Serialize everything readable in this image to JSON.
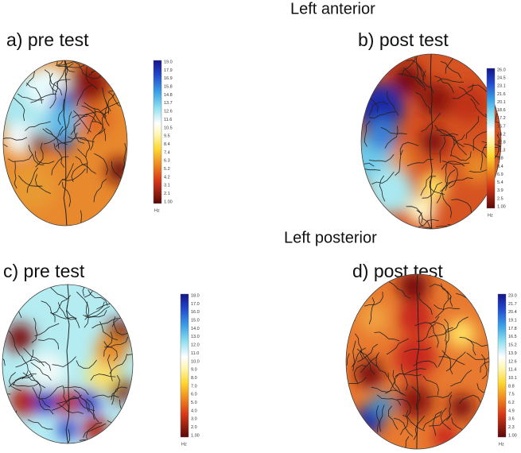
{
  "sections": [
    {
      "title": "Left anterior",
      "panels": [
        {
          "label": "a) pre test",
          "colorbar": {
            "labels": [
              "19.0",
              "17.9",
              "16.9",
              "15.8",
              "14.8",
              "13.7",
              "12.6",
              "11.6",
              "10.5",
              "9.5",
              "8.4",
              "7.4",
              "6.3",
              "5.2",
              "4.2",
              "3.1",
              "2.1",
              "1.00"
            ],
            "unit": "Hz"
          }
        },
        {
          "label": "b) post test",
          "colorbar": {
            "labels": [
              "26.0",
              "24.5",
              "23.1",
              "21.6",
              "20.1",
              "18.6",
              "17.2",
              "15.7",
              "14.2",
              "12.8",
              "11.3",
              "9.8",
              "8.4",
              "6.9",
              "5.4",
              "3.9",
              "2.5",
              "1.00"
            ],
            "unit": "Hz"
          }
        }
      ]
    },
    {
      "title": "Left posterior",
      "panels": [
        {
          "label": "c) pre test",
          "colorbar": {
            "labels": [
              "18.0",
              "17.0",
              "16.0",
              "15.0",
              "14.0",
              "13.0",
              "12.0",
              "11.0",
              "10.0",
              "9.0",
              "8.0",
              "7.0",
              "6.0",
              "5.0",
              "4.0",
              "3.0",
              "2.0",
              "1.00"
            ],
            "unit": "Hz"
          }
        },
        {
          "label": "d) post test",
          "colorbar": {
            "labels": [
              "23.0",
              "21.7",
              "20.4",
              "19.1",
              "17.8",
              "16.5",
              "15.2",
              "13.9",
              "12.6",
              "11.4",
              "10.1",
              "8.8",
              "7.5",
              "6.2",
              "4.9",
              "3.6",
              "2.3",
              "1.00"
            ],
            "unit": "Hz"
          }
        }
      ]
    }
  ]
}
